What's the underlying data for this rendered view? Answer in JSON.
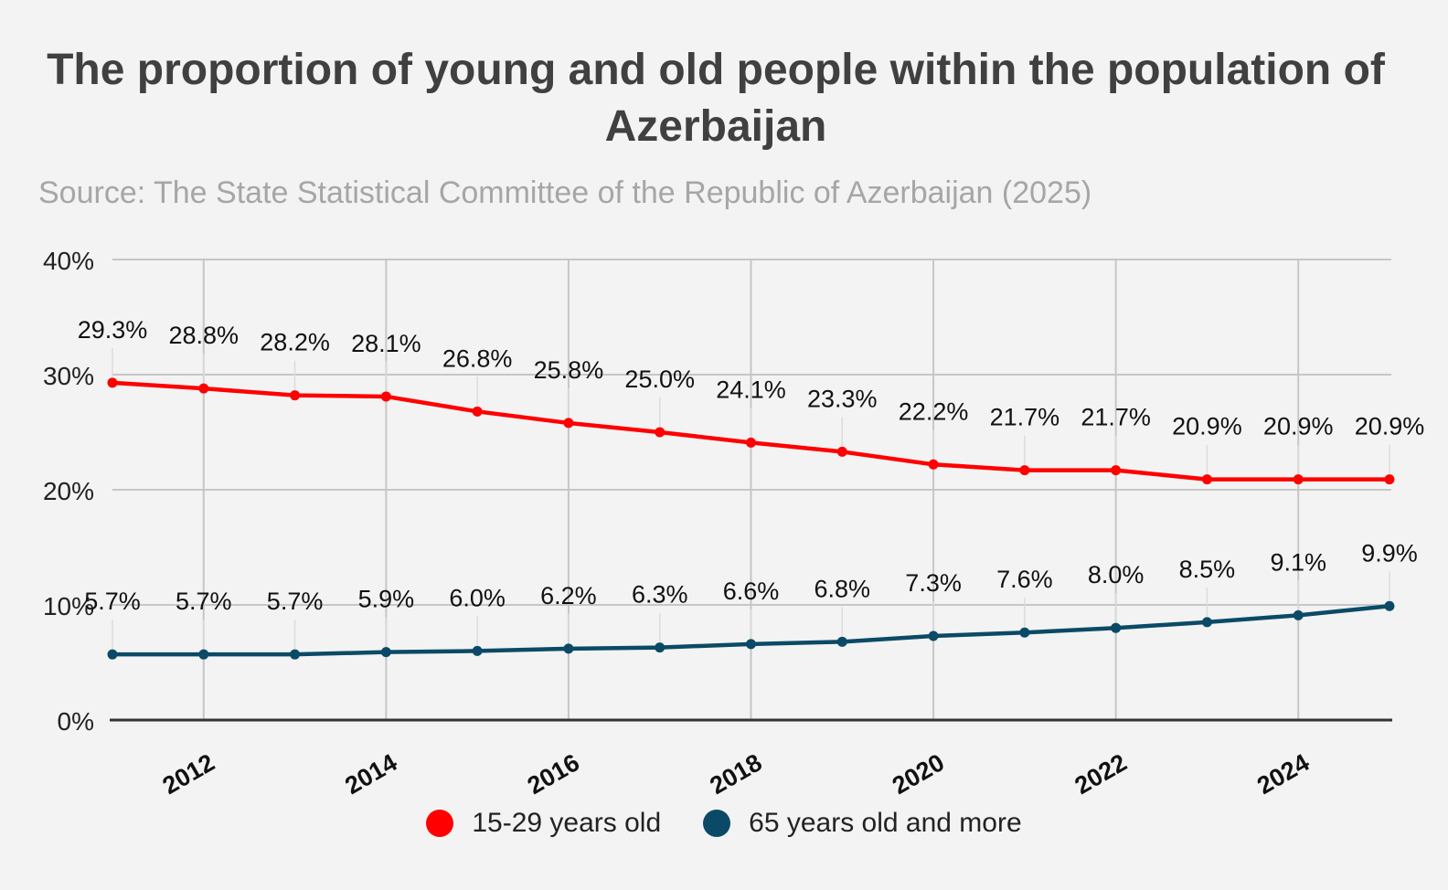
{
  "chart_data": {
    "type": "line",
    "title": "The proportion of young and old people within the population of Azerbaijan",
    "subtitle": "Source: The State Statistical Committee of the Republic of Azerbaijan (2025)",
    "xlabel": "",
    "ylabel": "",
    "x": [
      2011,
      2012,
      2013,
      2014,
      2015,
      2016,
      2017,
      2018,
      2019,
      2020,
      2021,
      2022,
      2023,
      2024,
      2025
    ],
    "x_tick_labels": [
      "2012",
      "2014",
      "2016",
      "2018",
      "2020",
      "2022",
      "2024"
    ],
    "x_tick_values": [
      2012,
      2014,
      2016,
      2018,
      2020,
      2022,
      2024
    ],
    "ylim": [
      0,
      40
    ],
    "y_ticks": [
      0,
      10,
      20,
      30,
      40
    ],
    "y_tick_labels": [
      "0%",
      "10%",
      "20%",
      "30%",
      "40%"
    ],
    "grid": true,
    "legend_position": "bottom",
    "series": [
      {
        "name": "15-29 years old",
        "color": "#ff0000",
        "values": [
          29.3,
          28.8,
          28.2,
          28.1,
          26.8,
          25.8,
          25.0,
          24.1,
          23.3,
          22.2,
          21.7,
          21.7,
          20.9,
          20.9,
          20.9
        ],
        "labels": [
          "29.3%",
          "28.8%",
          "28.2%",
          "28.1%",
          "26.8%",
          "25.8%",
          "25.0%",
          "24.1%",
          "23.3%",
          "22.2%",
          "21.7%",
          "21.7%",
          "20.9%",
          "20.9%",
          "20.9%"
        ]
      },
      {
        "name": "65 years old and more",
        "color": "#0b4a66",
        "values": [
          5.7,
          5.7,
          5.7,
          5.9,
          6.0,
          6.2,
          6.3,
          6.6,
          6.8,
          7.3,
          7.6,
          8.0,
          8.5,
          9.1,
          9.9
        ],
        "labels": [
          "5.7%",
          "5.7%",
          "5.7%",
          "5.9%",
          "6.0%",
          "6.2%",
          "6.3%",
          "6.6%",
          "6.8%",
          "7.3%",
          "7.6%",
          "8.0%",
          "8.5%",
          "9.1%",
          "9.9%"
        ]
      }
    ]
  }
}
